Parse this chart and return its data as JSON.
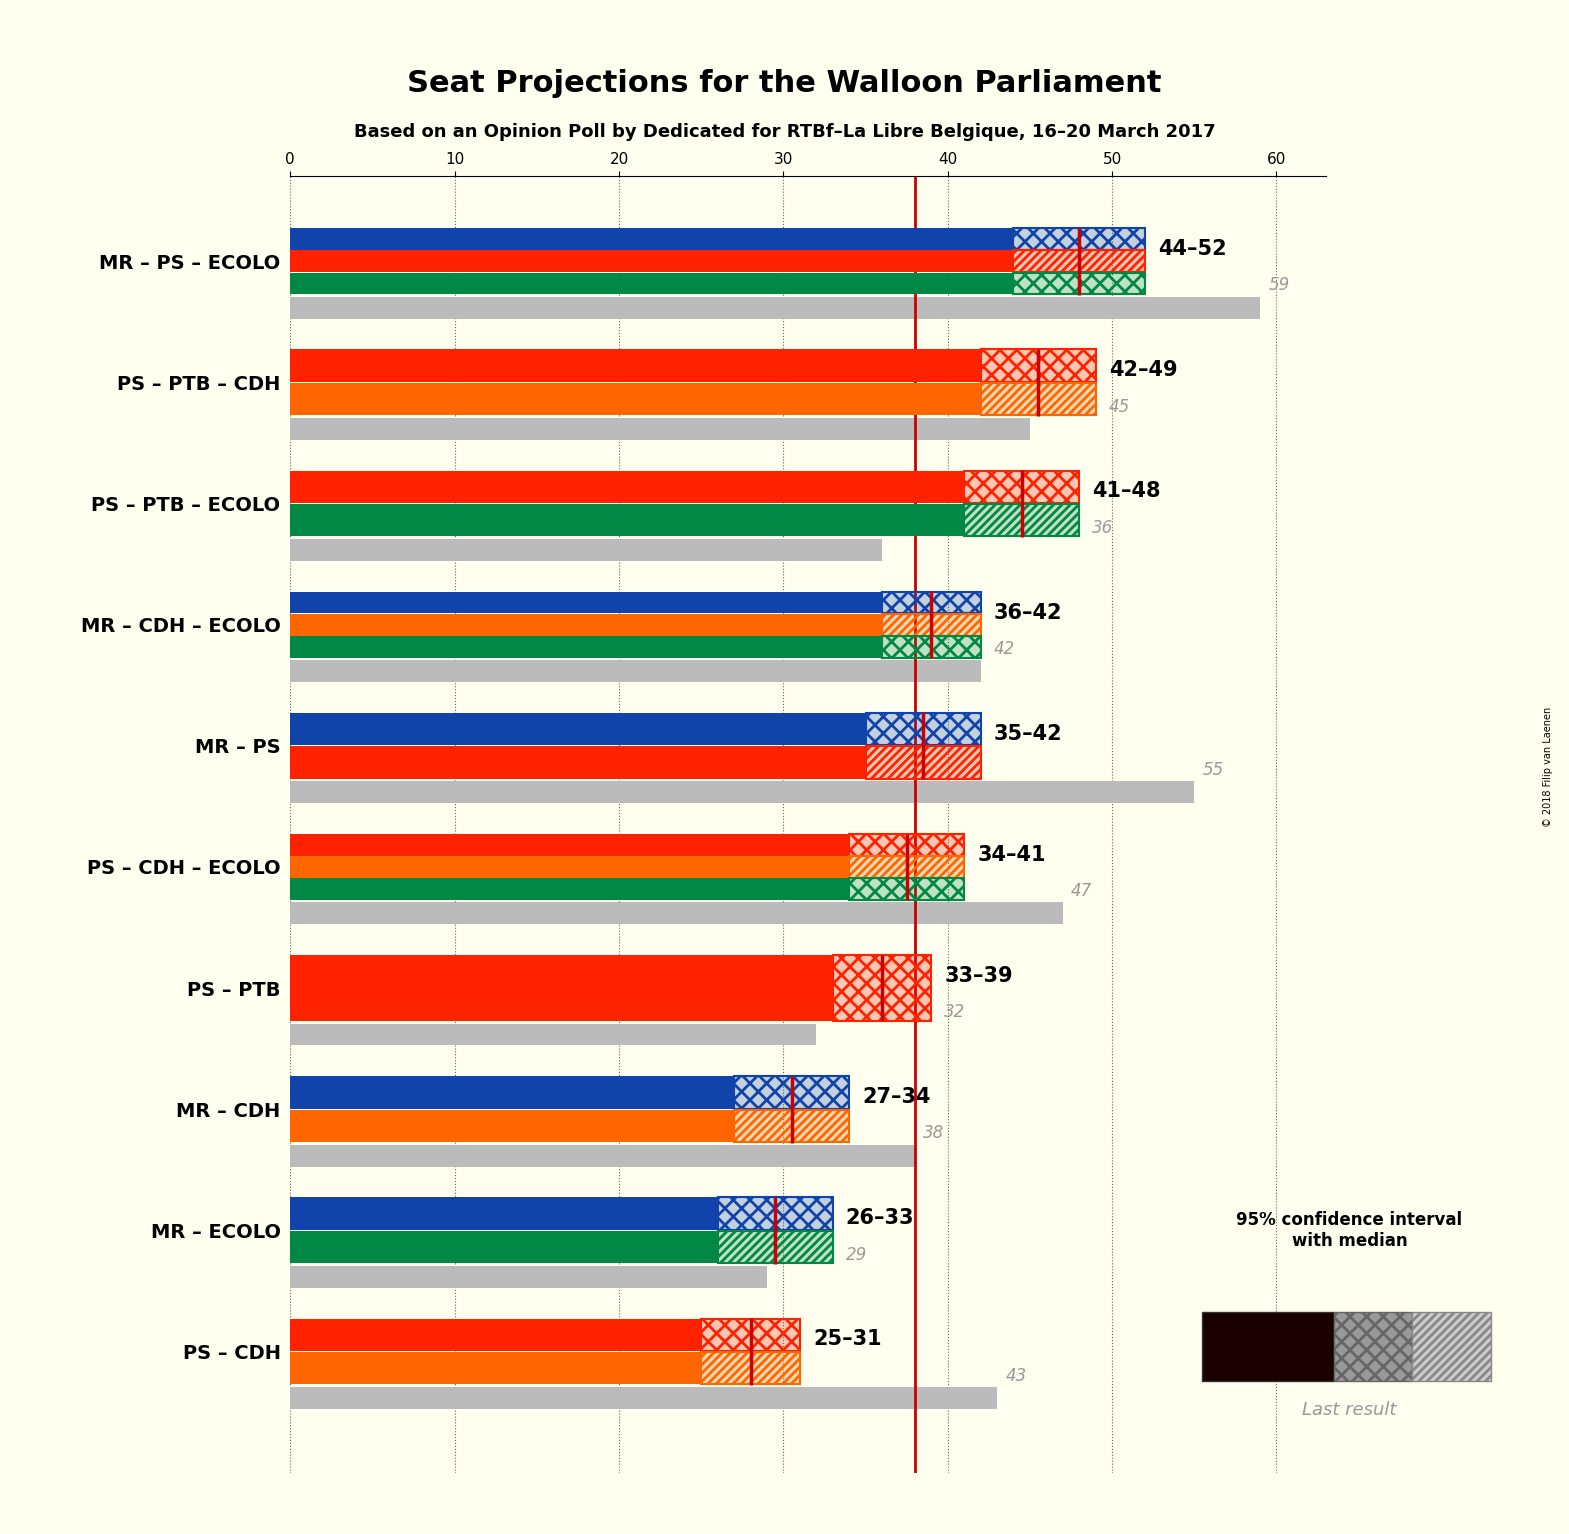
{
  "title": "Seat Projections for the Walloon Parliament",
  "subtitle": "Based on an Opinion Poll by Dedicated for RTBf–La Libre Belgique, 16–20 March 2017",
  "copyright": "© 2018 Filip van Laenen",
  "background_color": "#fffff0",
  "coalitions": [
    "MR – PS – ECOLO",
    "PS – PTB – CDH",
    "PS – PTB – ECOLO",
    "MR – CDH – ECOLO",
    "MR – PS",
    "PS – CDH – ECOLO",
    "PS – PTB",
    "MR – CDH",
    "MR – ECOLO",
    "PS – CDH"
  ],
  "ci_low": [
    44,
    42,
    41,
    36,
    35,
    34,
    33,
    27,
    26,
    25
  ],
  "ci_high": [
    52,
    49,
    48,
    42,
    42,
    41,
    39,
    34,
    33,
    31
  ],
  "median": [
    48,
    45.5,
    44.5,
    39,
    38.5,
    37.5,
    36,
    30.5,
    29.5,
    28
  ],
  "last_result": [
    59,
    45,
    36,
    42,
    55,
    47,
    32,
    38,
    29,
    43
  ],
  "range_labels": [
    "44–52",
    "42–49",
    "41–48",
    "36–42",
    "35–42",
    "34–41",
    "33–39",
    "27–34",
    "26–33",
    "25–31"
  ],
  "party_order": {
    "MR – PS – ECOLO": [
      "MR",
      "PS",
      "ECOLO"
    ],
    "PS – PTB – CDH": [
      "PS",
      "CDH"
    ],
    "PS – PTB – ECOLO": [
      "PS",
      "ECOLO"
    ],
    "MR – CDH – ECOLO": [
      "MR",
      "CDH",
      "ECOLO"
    ],
    "MR – PS": [
      "MR",
      "PS"
    ],
    "PS – CDH – ECOLO": [
      "PS",
      "CDH",
      "ECOLO"
    ],
    "PS – PTB": [
      "PS"
    ],
    "MR – CDH": [
      "MR",
      "CDH"
    ],
    "MR – ECOLO": [
      "MR",
      "ECOLO"
    ],
    "PS – CDH": [
      "PS",
      "CDH"
    ]
  },
  "ci_party_colors": {
    "MR – PS – ECOLO": [
      "MR",
      "PS",
      "ECOLO"
    ],
    "PS – PTB – CDH": [
      "PS",
      "CDH"
    ],
    "PS – PTB – ECOLO": [
      "PS",
      "ECOLO"
    ],
    "MR – CDH – ECOLO": [
      "MR",
      "CDH",
      "ECOLO"
    ],
    "MR – PS": [
      "MR",
      "PS"
    ],
    "PS – CDH – ECOLO": [
      "PS",
      "CDH",
      "ECOLO"
    ],
    "PS – PTB": [
      "PS"
    ],
    "MR – CDH": [
      "MR",
      "CDH"
    ],
    "MR – ECOLO": [
      "MR",
      "ECOLO"
    ],
    "PS – CDH": [
      "PS",
      "CDH"
    ]
  },
  "party_colors": {
    "MR": "#1144AA",
    "PS": "#FF2200",
    "ECOLO": "#008844",
    "CDH": "#FF6600",
    "PTB": "#880000"
  },
  "majority_line": 38,
  "xlim_max": 63,
  "tick_positions": [
    0,
    10,
    20,
    30,
    40,
    50,
    60
  ],
  "median_line_color": "#CC0000",
  "last_result_color": "#BBBBBB",
  "ci_hatch_color": "#888888"
}
